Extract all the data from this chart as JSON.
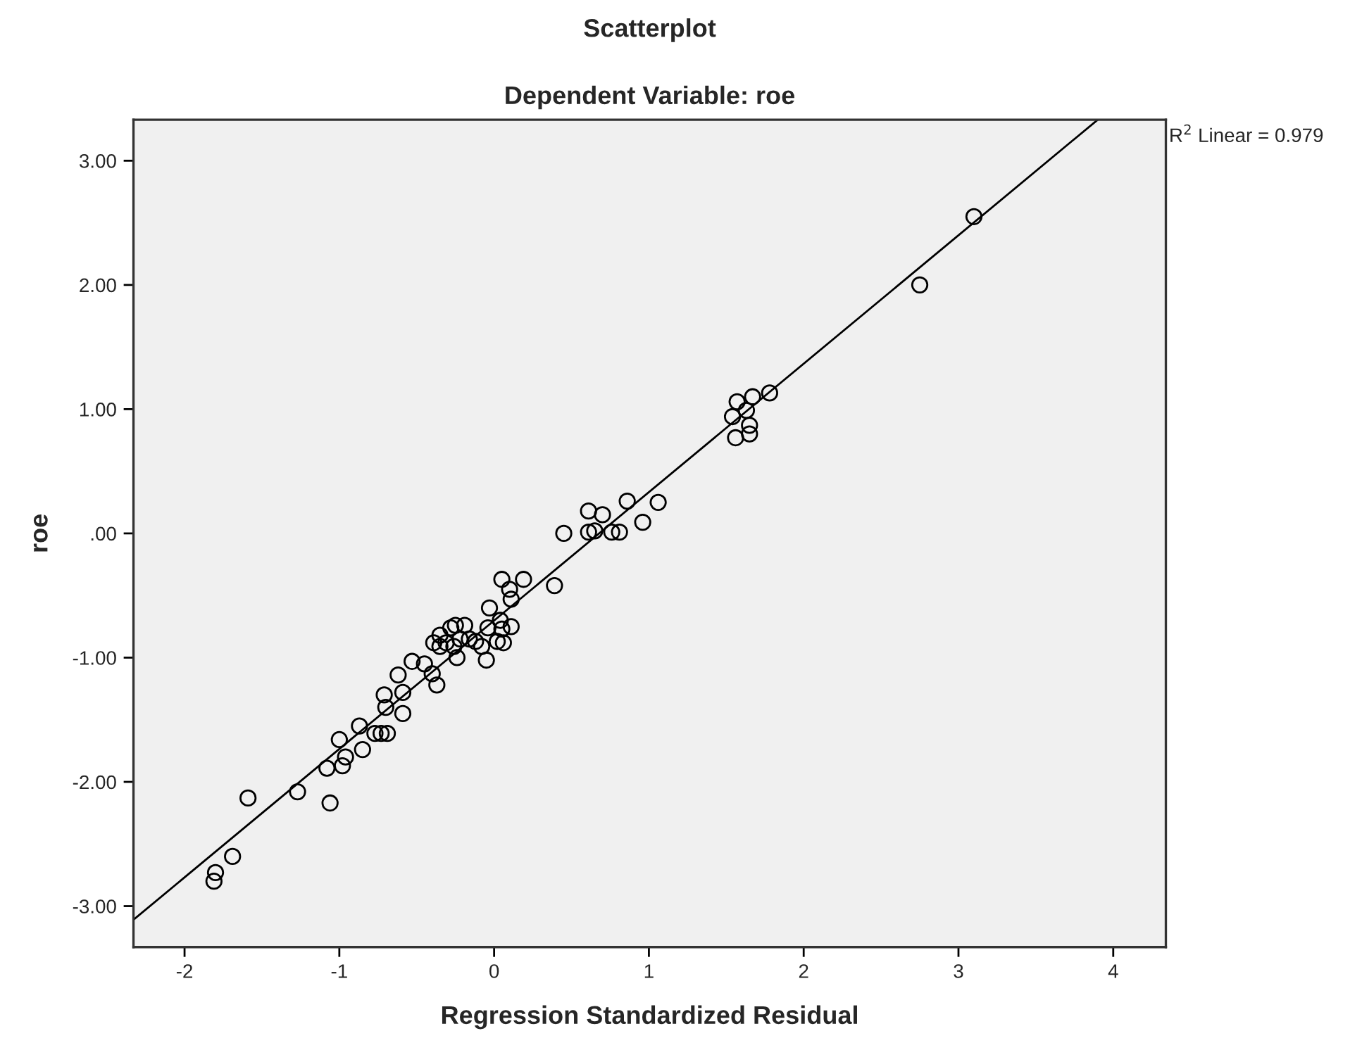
{
  "chart_data": {
    "type": "scatter",
    "title": "Scatterplot",
    "subtitle": "Dependent Variable: roe",
    "xlabel": "Regression Standardized Residual",
    "ylabel": "roe",
    "annotations": [
      "R$^{2}$ Linear = 0.979"
    ],
    "xlim": [
      -2.33,
      4.34
    ],
    "ylim": [
      -3.33,
      3.33
    ],
    "xticks": [
      -2,
      -1,
      0,
      1,
      2,
      3,
      4
    ],
    "yticks": [
      {
        "value": -3,
        "label": "-3.00"
      },
      {
        "value": -2,
        "label": "-2.00"
      },
      {
        "value": -1,
        "label": "-1.00"
      },
      {
        "value": 0,
        "label": ".00"
      },
      {
        "value": 1,
        "label": "1.00"
      },
      {
        "value": 2,
        "label": "2.00"
      },
      {
        "value": 3,
        "label": "3.00"
      }
    ],
    "grid": false,
    "legend": false,
    "series": [
      {
        "marker": "circle",
        "color": "#000000",
        "x": [
          -1.8,
          -1.81,
          -1.69,
          -1.59,
          -1.27,
          -1.06,
          -1.08,
          -0.98,
          -0.96,
          -1.0,
          -0.85,
          -0.87,
          -0.77,
          -0.73,
          -0.69,
          -0.71,
          -0.7,
          -0.59,
          -0.59,
          -0.62,
          -0.53,
          -0.45,
          -0.4,
          -0.37,
          -0.39,
          -0.35,
          -0.28,
          -0.25,
          -0.19,
          -0.35,
          -0.31,
          -0.26,
          -0.24,
          -0.22,
          -0.16,
          -0.12,
          -0.08,
          -0.05,
          -0.03,
          -0.04,
          0.04,
          0.05,
          0.02,
          0.06,
          0.11,
          0.05,
          0.19,
          0.1,
          0.11,
          0.39,
          0.45,
          0.61,
          0.7,
          0.61,
          0.65,
          0.76,
          0.81,
          0.86,
          0.96,
          1.06,
          1.57,
          1.67,
          1.78,
          1.54,
          1.63,
          1.65,
          1.65,
          1.56,
          2.75,
          3.1
        ],
        "values": [
          -2.73,
          -2.8,
          -2.6,
          -2.13,
          -2.08,
          -2.17,
          -1.89,
          -1.87,
          -1.8,
          -1.66,
          -1.74,
          -1.55,
          -1.61,
          -1.61,
          -1.61,
          -1.3,
          -1.4,
          -1.28,
          -1.45,
          -1.14,
          -1.03,
          -1.05,
          -1.13,
          -1.22,
          -0.88,
          -0.82,
          -0.76,
          -0.74,
          -0.74,
          -0.91,
          -0.88,
          -0.91,
          -1.0,
          -0.85,
          -0.85,
          -0.87,
          -0.91,
          -1.02,
          -0.6,
          -0.76,
          -0.7,
          -0.77,
          -0.87,
          -0.88,
          -0.75,
          -0.37,
          -0.37,
          -0.45,
          -0.53,
          -0.42,
          0.0,
          0.18,
          0.15,
          0.01,
          0.02,
          0.01,
          0.01,
          0.26,
          0.09,
          0.25,
          1.06,
          1.1,
          1.13,
          0.94,
          0.99,
          0.87,
          0.8,
          0.77,
          2.0,
          2.55
        ]
      },
      {
        "type": "line",
        "marker": "none",
        "color": "#000000",
        "x": [
          -2.33,
          3.9
        ],
        "values": [
          -3.11,
          3.33
        ]
      }
    ]
  }
}
